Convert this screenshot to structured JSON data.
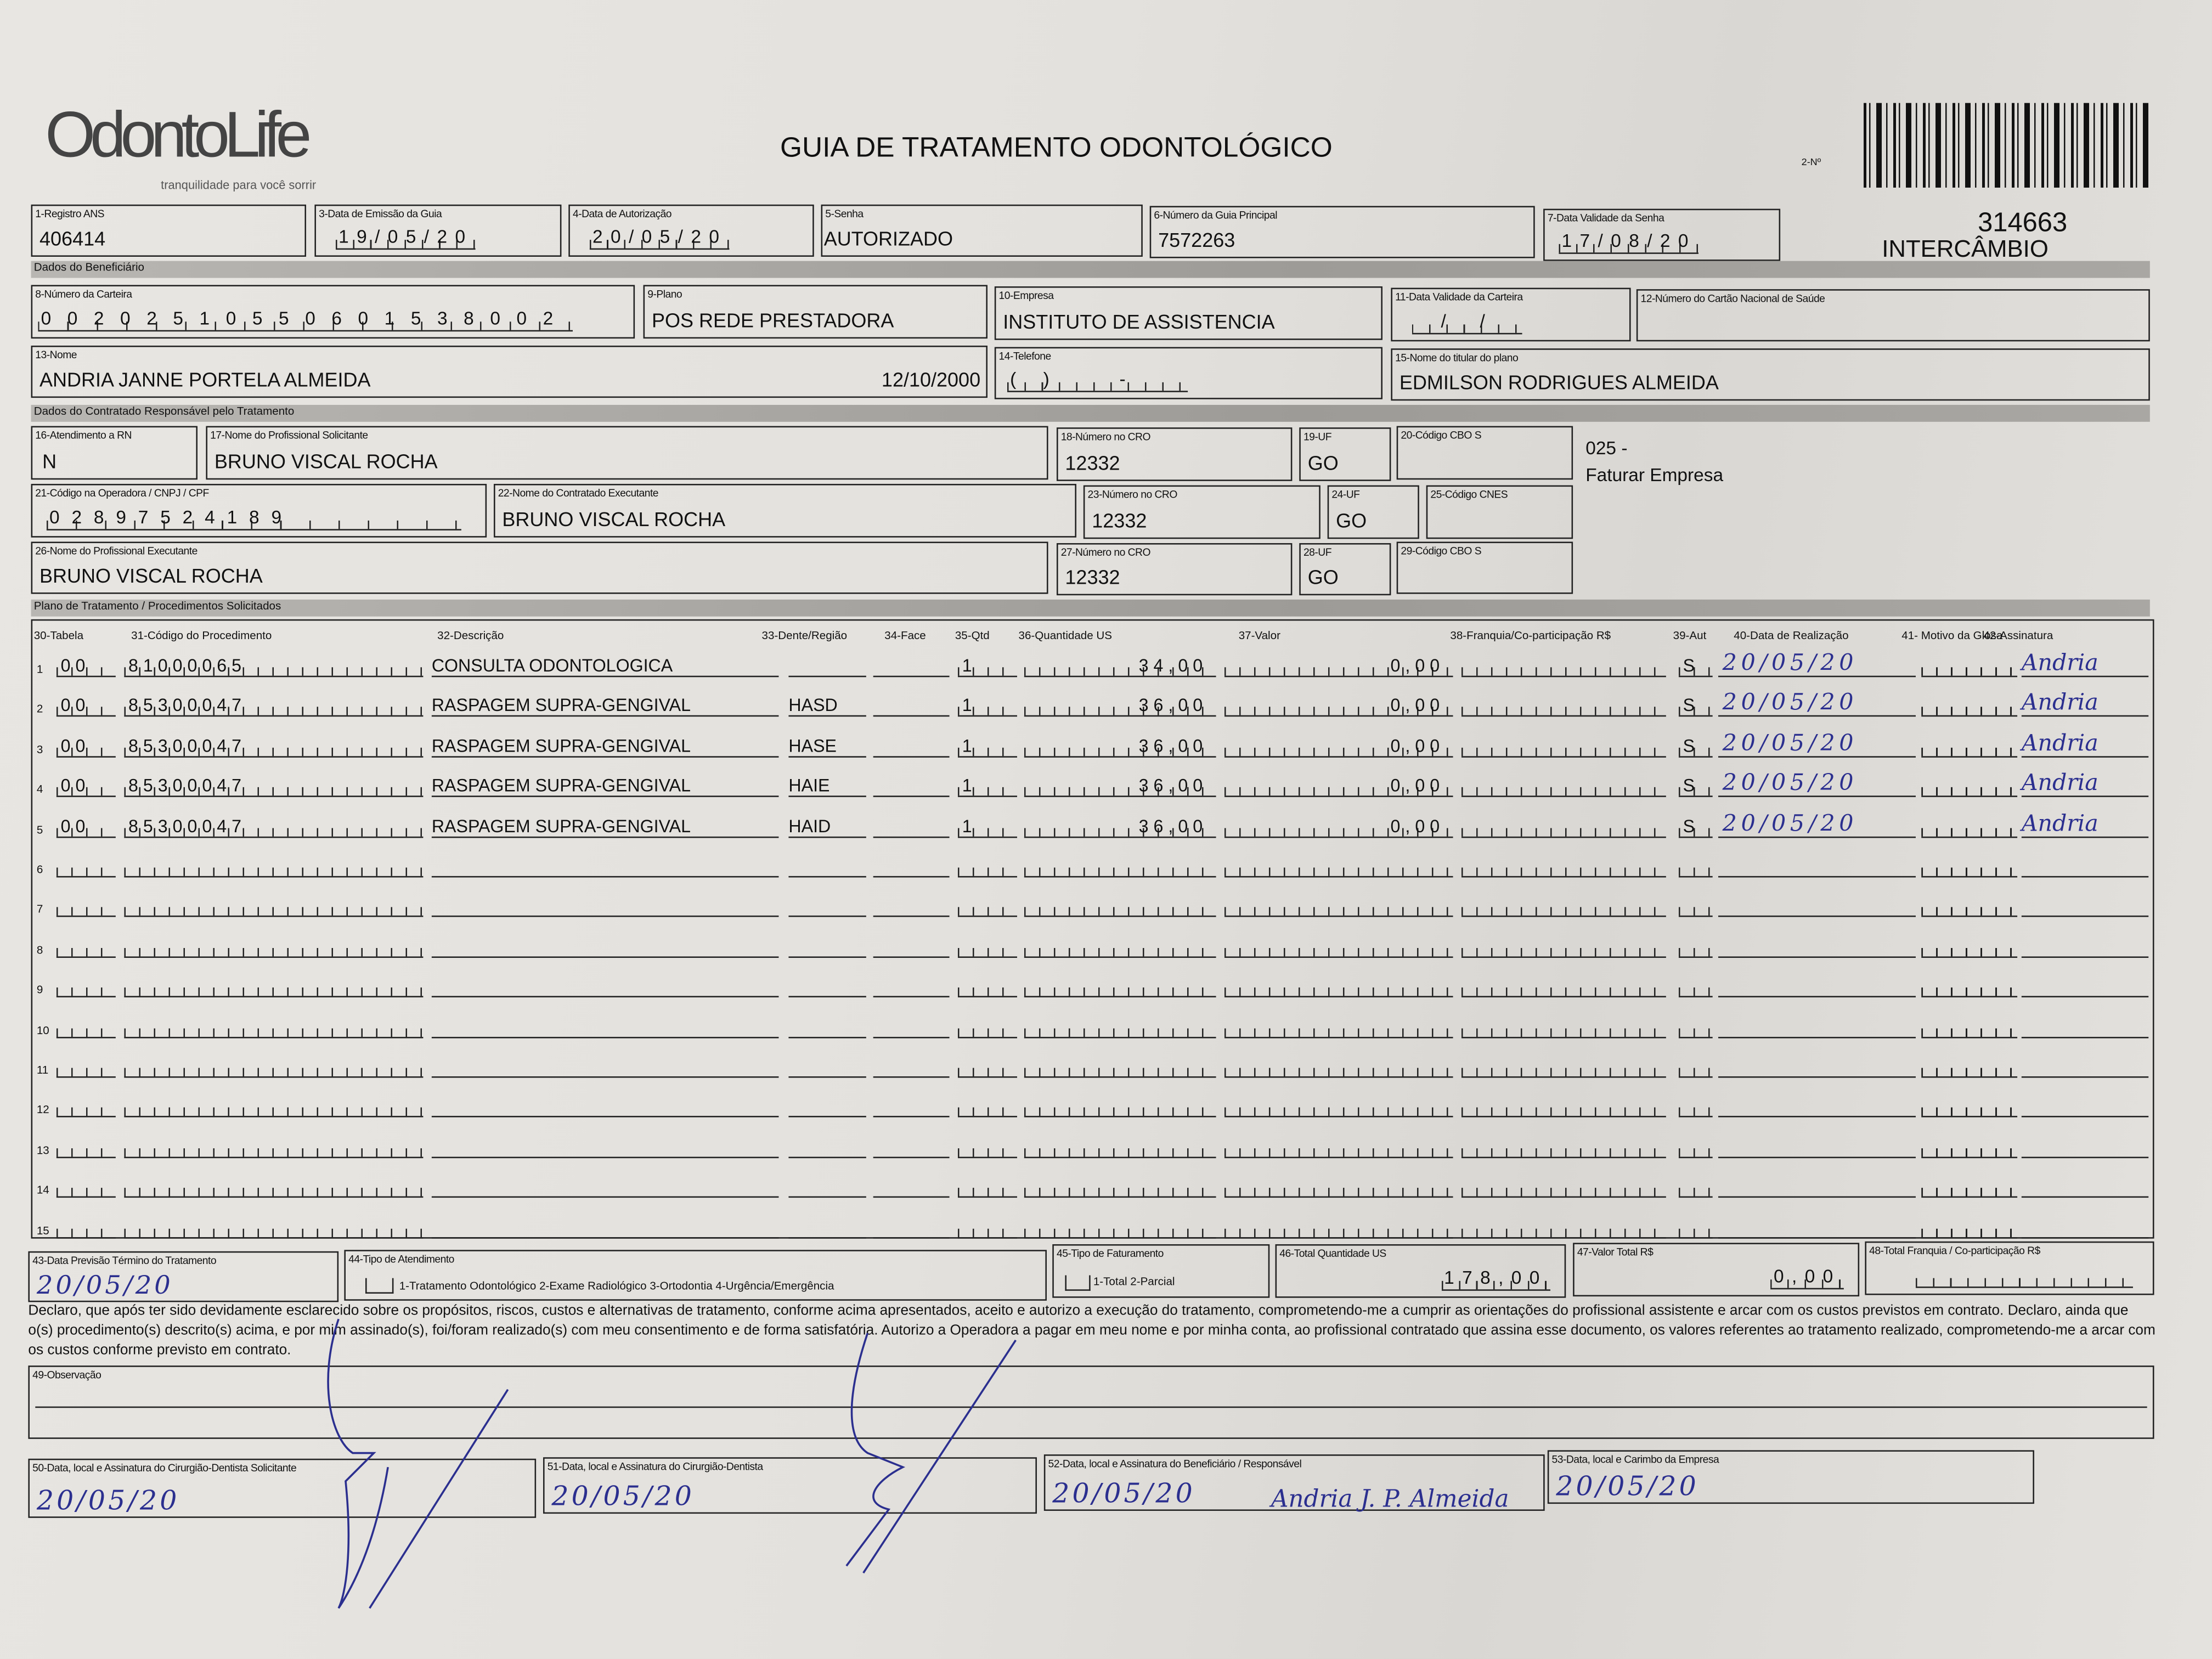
{
  "header": {
    "logo": "OdontoLife",
    "tagline": "tranquilidade para você sorrir",
    "title": "GUIA DE TRATAMENTO ODONTOLÓGICO",
    "guide_no_label": "2-Nº",
    "guide_number": "314663",
    "guide_type": "INTERCÂMBIO"
  },
  "guide": {
    "registro_ans": {
      "label": "1-Registro ANS",
      "value": "406414"
    },
    "data_emissao": {
      "label": "3-Data de Emissão da Guia",
      "value": "19/05/20"
    },
    "data_autorizacao": {
      "label": "4-Data de Autorização",
      "value": "20/05/20"
    },
    "senha": {
      "label": "5-Senha",
      "value": "AUTORIZADO"
    },
    "guia_principal": {
      "label": "6-Número da Guia Principal",
      "value": "7572263"
    },
    "validade_senha": {
      "label": "7-Data Validade da Senha",
      "value": "17/08/20"
    }
  },
  "beneficiario": {
    "section": "Dados do Beneficiário",
    "carteira": {
      "label": "8-Número da Carteira",
      "value": "00202510550601538002"
    },
    "plano": {
      "label": "9-Plano",
      "value": "POS REDE PRESTADORA"
    },
    "empresa": {
      "label": "10-Empresa",
      "value": "INSTITUTO DE ASSISTENCIA"
    },
    "validade_carteira": {
      "label": "11-Data Validade da Carteira",
      "value": "  /  /  "
    },
    "cns": {
      "label": "12-Número do Cartão Nacional de Saúde",
      "value": ""
    },
    "nome": {
      "label": "13-Nome",
      "value": "ANDRIA JANNE PORTELA ALMEIDA",
      "birth": "12/10/2000"
    },
    "telefone": {
      "label": "14-Telefone",
      "value": "(  )      -     "
    },
    "titular": {
      "label": "15-Nome do titular do plano",
      "value": "EDMILSON RODRIGUES ALMEIDA"
    }
  },
  "contratado": {
    "section": "Dados do Contratado Responsável pelo Tratamento",
    "rn": {
      "label": "16-Atendimento a RN",
      "value": "N"
    },
    "prof_solicitante": {
      "label": "17-Nome do Profissional Solicitante",
      "value": "BRUNO VISCAL ROCHA"
    },
    "cro_18": {
      "label": "18-Número no CRO",
      "value": "12332"
    },
    "uf_19": {
      "label": "19-UF",
      "value": "GO"
    },
    "cbo_20": {
      "label": "20-Código CBO S",
      "value": ""
    },
    "billing_code": "025 -",
    "billing_text": "Faturar Empresa",
    "codigo_operadora": {
      "label": "21-Código na Operadora / CNPJ / CPF",
      "value": "02897524189"
    },
    "contratado_exec": {
      "label": "22-Nome do Contratado Executante",
      "value": "BRUNO VISCAL ROCHA"
    },
    "cro_23": {
      "label": "23-Número no CRO",
      "value": "12332"
    },
    "uf_24": {
      "label": "24-UF",
      "value": "GO"
    },
    "cnes": {
      "label": "25-Código CNES",
      "value": ""
    },
    "prof_exec": {
      "label": "26-Nome do Profissional Executante",
      "value": "BRUNO VISCAL ROCHA"
    },
    "cro_27": {
      "label": "27-Número no CRO",
      "value": "12332"
    },
    "uf_28": {
      "label": "28-UF",
      "value": "GO"
    },
    "cbo_29": {
      "label": "29-Código CBO S",
      "value": ""
    }
  },
  "plano": {
    "section": "Plano de Tratamento / Procedimentos Solicitados",
    "headers": [
      "30-Tabela",
      "31-Código do Procedimento",
      "32-Descrição",
      "33-Dente/Região",
      "34-Face",
      "35-Qtd",
      "36-Quantidade US",
      "37-Valor",
      "38-Franquia/Co-participação R$",
      "39-Aut",
      "40-Data de Realização",
      "41- Motivo da Glosa",
      "42-Assinatura"
    ],
    "rows": [
      {
        "n": "1",
        "tabela": "00",
        "codigo": "81000065",
        "descricao": "CONSULTA ODONTOLOGICA",
        "dente": "",
        "face": "",
        "qtd": "1",
        "quant_us": "34,00",
        "valor": "0,00",
        "franquia": "",
        "aut": "S",
        "data": "20/05/20",
        "glosa": "",
        "assinatura": "Andria"
      },
      {
        "n": "2",
        "tabela": "00",
        "codigo": "85300047",
        "descricao": "RASPAGEM SUPRA-GENGIVAL",
        "dente": "HASD",
        "face": "",
        "qtd": "1",
        "quant_us": "36,00",
        "valor": "0,00",
        "franquia": "",
        "aut": "S",
        "data": "20/05/20",
        "glosa": "",
        "assinatura": "Andria"
      },
      {
        "n": "3",
        "tabela": "00",
        "codigo": "85300047",
        "descricao": "RASPAGEM SUPRA-GENGIVAL",
        "dente": "HASE",
        "face": "",
        "qtd": "1",
        "quant_us": "36,00",
        "valor": "0,00",
        "franquia": "",
        "aut": "S",
        "data": "20/05/20",
        "glosa": "",
        "assinatura": "Andria"
      },
      {
        "n": "4",
        "tabela": "00",
        "codigo": "85300047",
        "descricao": "RASPAGEM SUPRA-GENGIVAL",
        "dente": "HAIE",
        "face": "",
        "qtd": "1",
        "quant_us": "36,00",
        "valor": "0,00",
        "franquia": "",
        "aut": "S",
        "data": "20/05/20",
        "glosa": "",
        "assinatura": "Andria"
      },
      {
        "n": "5",
        "tabela": "00",
        "codigo": "85300047",
        "descricao": "RASPAGEM SUPRA-GENGIVAL",
        "dente": "HAID",
        "face": "",
        "qtd": "1",
        "quant_us": "36,00",
        "valor": "0,00",
        "franquia": "",
        "aut": "S",
        "data": "20/05/20",
        "glosa": "",
        "assinatura": "Andria"
      },
      {
        "n": "6"
      },
      {
        "n": "7"
      },
      {
        "n": "8"
      },
      {
        "n": "9"
      },
      {
        "n": "10"
      },
      {
        "n": "11"
      },
      {
        "n": "12"
      },
      {
        "n": "13"
      },
      {
        "n": "14"
      },
      {
        "n": "15"
      }
    ]
  },
  "totais": {
    "previsao": {
      "label": "43-Data Previsão Término do Tratamento",
      "value": "20/05/20"
    },
    "tipo_atendimento": {
      "label": "44-Tipo de Atendimento",
      "value": "",
      "options": "1-Tratamento Odontológico  2-Exame Radiológico  3-Ortodontia  4-Urgência/Emergência"
    },
    "tipo_faturamento": {
      "label": "45-Tipo de Faturamento",
      "value": "",
      "options": "1-Total  2-Parcial"
    },
    "total_us": {
      "label": "46-Total Quantidade US",
      "value": "178,00"
    },
    "valor_total": {
      "label": "47-Valor Total R$",
      "value": "0,00"
    },
    "total_franquia": {
      "label": "48-Total Franquia / Co-participação R$",
      "value": ""
    }
  },
  "declaracao": "Declaro, que após ter sido devidamente esclarecido sobre os propósitos, riscos, custos e alternativas de tratamento, conforme acima apresentados, aceito e autorizo a execução do tratamento, comprometendo-me a cumprir as orientações do profissional assistente e arcar com os custos previstos em contrato. Declaro, ainda que o(s) procedimento(s) descrito(s) acima, e por mim assinado(s), foi/foram realizado(s) com meu consentimento e de forma satisfatória. Autorizo a Operadora a pagar em meu nome e por minha conta, ao profissional contratado que assina esse documento, os valores referentes ao tratamento realizado, comprometendo-me a arcar com os custos conforme previsto em contrato.",
  "observacao": {
    "label": "49-Observação",
    "value": ""
  },
  "assinaturas": {
    "solicitante": {
      "label": "50-Data, local e Assinatura do Cirurgião-Dentista Solicitante",
      "date": "20/05/20"
    },
    "dentista": {
      "label": "51-Data, local e Assinatura do Cirurgião-Dentista",
      "date": "20/05/20"
    },
    "beneficiario": {
      "label": "52-Data, local e Assinatura do Beneficiário / Responsável",
      "date": "20/05/20",
      "signature": "Andria J. P. Almeida"
    },
    "empresa": {
      "label": "53-Data, local e Carimbo da Empresa",
      "date": "20/05/20"
    }
  },
  "colors": {
    "ink": "#2b2f8f",
    "print": "#111111",
    "paper": "#e6e4e0"
  }
}
